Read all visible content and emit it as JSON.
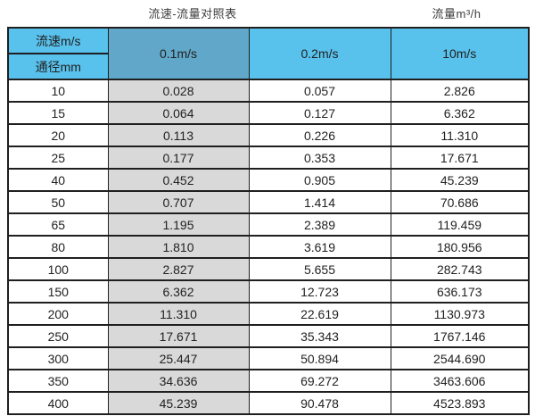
{
  "page": {
    "title": "流速-流量对照表",
    "unit_label": "流量m³/h"
  },
  "table": {
    "corner_top": "流速m/s",
    "corner_bottom": "通径mm",
    "velocity_headers": [
      "0.1m/s",
      "0.2m/s",
      "10m/s"
    ]
  },
  "colors": {
    "header_blue": "#58c1ec",
    "header_dark_blue": "#61a7c9",
    "column_gray": "#d9d9d9",
    "border": "#1f1f1f"
  },
  "chart_data": {
    "type": "table",
    "title": "流速-流量对照表",
    "flow_unit": "流量m³/h",
    "columns": [
      "通径mm",
      "0.1m/s",
      "0.2m/s",
      "10m/s"
    ],
    "rows": [
      [
        "10",
        "0.028",
        "0.057",
        "2.826"
      ],
      [
        "15",
        "0.064",
        "0.127",
        "6.362"
      ],
      [
        "20",
        "0.113",
        "0.226",
        "11.310"
      ],
      [
        "25",
        "0.177",
        "0.353",
        "17.671"
      ],
      [
        "40",
        "0.452",
        "0.905",
        "45.239"
      ],
      [
        "50",
        "0.707",
        "1.414",
        "70.686"
      ],
      [
        "65",
        "1.195",
        "2.389",
        "119.459"
      ],
      [
        "80",
        "1.810",
        "3.619",
        "180.956"
      ],
      [
        "100",
        "2.827",
        "5.655",
        "282.743"
      ],
      [
        "150",
        "6.362",
        "12.723",
        "636.173"
      ],
      [
        "200",
        "11.310",
        "22.619",
        "1130.973"
      ],
      [
        "250",
        "17.671",
        "35.343",
        "1767.146"
      ],
      [
        "300",
        "25.447",
        "50.894",
        "2544.690"
      ],
      [
        "350",
        "34.636",
        "69.272",
        "3463.606"
      ],
      [
        "400",
        "45.239",
        "90.478",
        "4523.893"
      ]
    ]
  }
}
